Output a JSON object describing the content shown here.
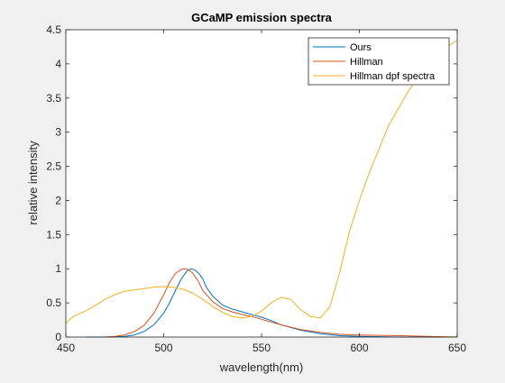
{
  "chart_data": {
    "type": "line",
    "title": "GCaMP emission spectra",
    "xlabel": "wavelength(nm)",
    "ylabel": "relative intensity",
    "xlim": [
      450,
      650
    ],
    "ylim": [
      0,
      4.5
    ],
    "xticks": [
      450,
      500,
      550,
      600,
      650
    ],
    "yticks": [
      0,
      0.5,
      1,
      1.5,
      2,
      2.5,
      3,
      3.5,
      4,
      4.5
    ],
    "xtick_labels": [
      "450",
      "500",
      "550",
      "600",
      "650"
    ],
    "ytick_labels": [
      "0",
      "0.5",
      "1",
      "1.5",
      "2",
      "2.5",
      "3",
      "3.5",
      "4",
      "4.5"
    ],
    "grid": false,
    "legend_position": "top-right",
    "series": [
      {
        "name": "Ours",
        "color": "#0072BD",
        "x": [
          460,
          470,
          480,
          485,
          490,
          495,
          500,
          503,
          506,
          509,
          512,
          514,
          516,
          518,
          520,
          522,
          525,
          530,
          535,
          540,
          545,
          550,
          555,
          560,
          570,
          580,
          590,
          600,
          620,
          650
        ],
        "y": [
          0,
          0,
          0.01,
          0.03,
          0.08,
          0.18,
          0.35,
          0.5,
          0.68,
          0.85,
          0.97,
          1.0,
          0.98,
          0.93,
          0.85,
          0.72,
          0.6,
          0.47,
          0.41,
          0.37,
          0.33,
          0.29,
          0.24,
          0.18,
          0.1,
          0.05,
          0.02,
          0.01,
          0,
          0
        ]
      },
      {
        "name": "Hillman",
        "color": "#D95319",
        "x": [
          470,
          475,
          480,
          485,
          490,
          495,
          500,
          503,
          506,
          509,
          511,
          513,
          515,
          518,
          520,
          525,
          530,
          535,
          540,
          545,
          550,
          560,
          570,
          580,
          590,
          600,
          620,
          650
        ],
        "y": [
          0,
          0.01,
          0.03,
          0.08,
          0.17,
          0.35,
          0.62,
          0.8,
          0.93,
          0.99,
          1.0,
          0.98,
          0.93,
          0.8,
          0.68,
          0.52,
          0.42,
          0.37,
          0.33,
          0.3,
          0.26,
          0.18,
          0.11,
          0.07,
          0.04,
          0.03,
          0.02,
          0
        ]
      },
      {
        "name": "Hillman dpf spectra",
        "color": "#EDB120",
        "x": [
          450,
          452,
          455,
          460,
          465,
          470,
          475,
          480,
          485,
          490,
          495,
          500,
          505,
          510,
          515,
          520,
          525,
          530,
          535,
          540,
          545,
          550,
          555,
          560,
          565,
          570,
          575,
          580,
          585,
          590,
          595,
          600,
          605,
          610,
          615,
          620,
          625,
          630,
          635,
          640,
          645,
          650
        ],
        "y": [
          0.2,
          0.26,
          0.32,
          0.38,
          0.46,
          0.55,
          0.62,
          0.67,
          0.69,
          0.71,
          0.73,
          0.74,
          0.73,
          0.7,
          0.64,
          0.55,
          0.45,
          0.36,
          0.3,
          0.28,
          0.3,
          0.38,
          0.5,
          0.58,
          0.55,
          0.4,
          0.3,
          0.28,
          0.45,
          0.95,
          1.55,
          2.0,
          2.4,
          2.75,
          3.1,
          3.35,
          3.6,
          3.8,
          3.95,
          4.1,
          4.25,
          4.35
        ]
      }
    ]
  }
}
